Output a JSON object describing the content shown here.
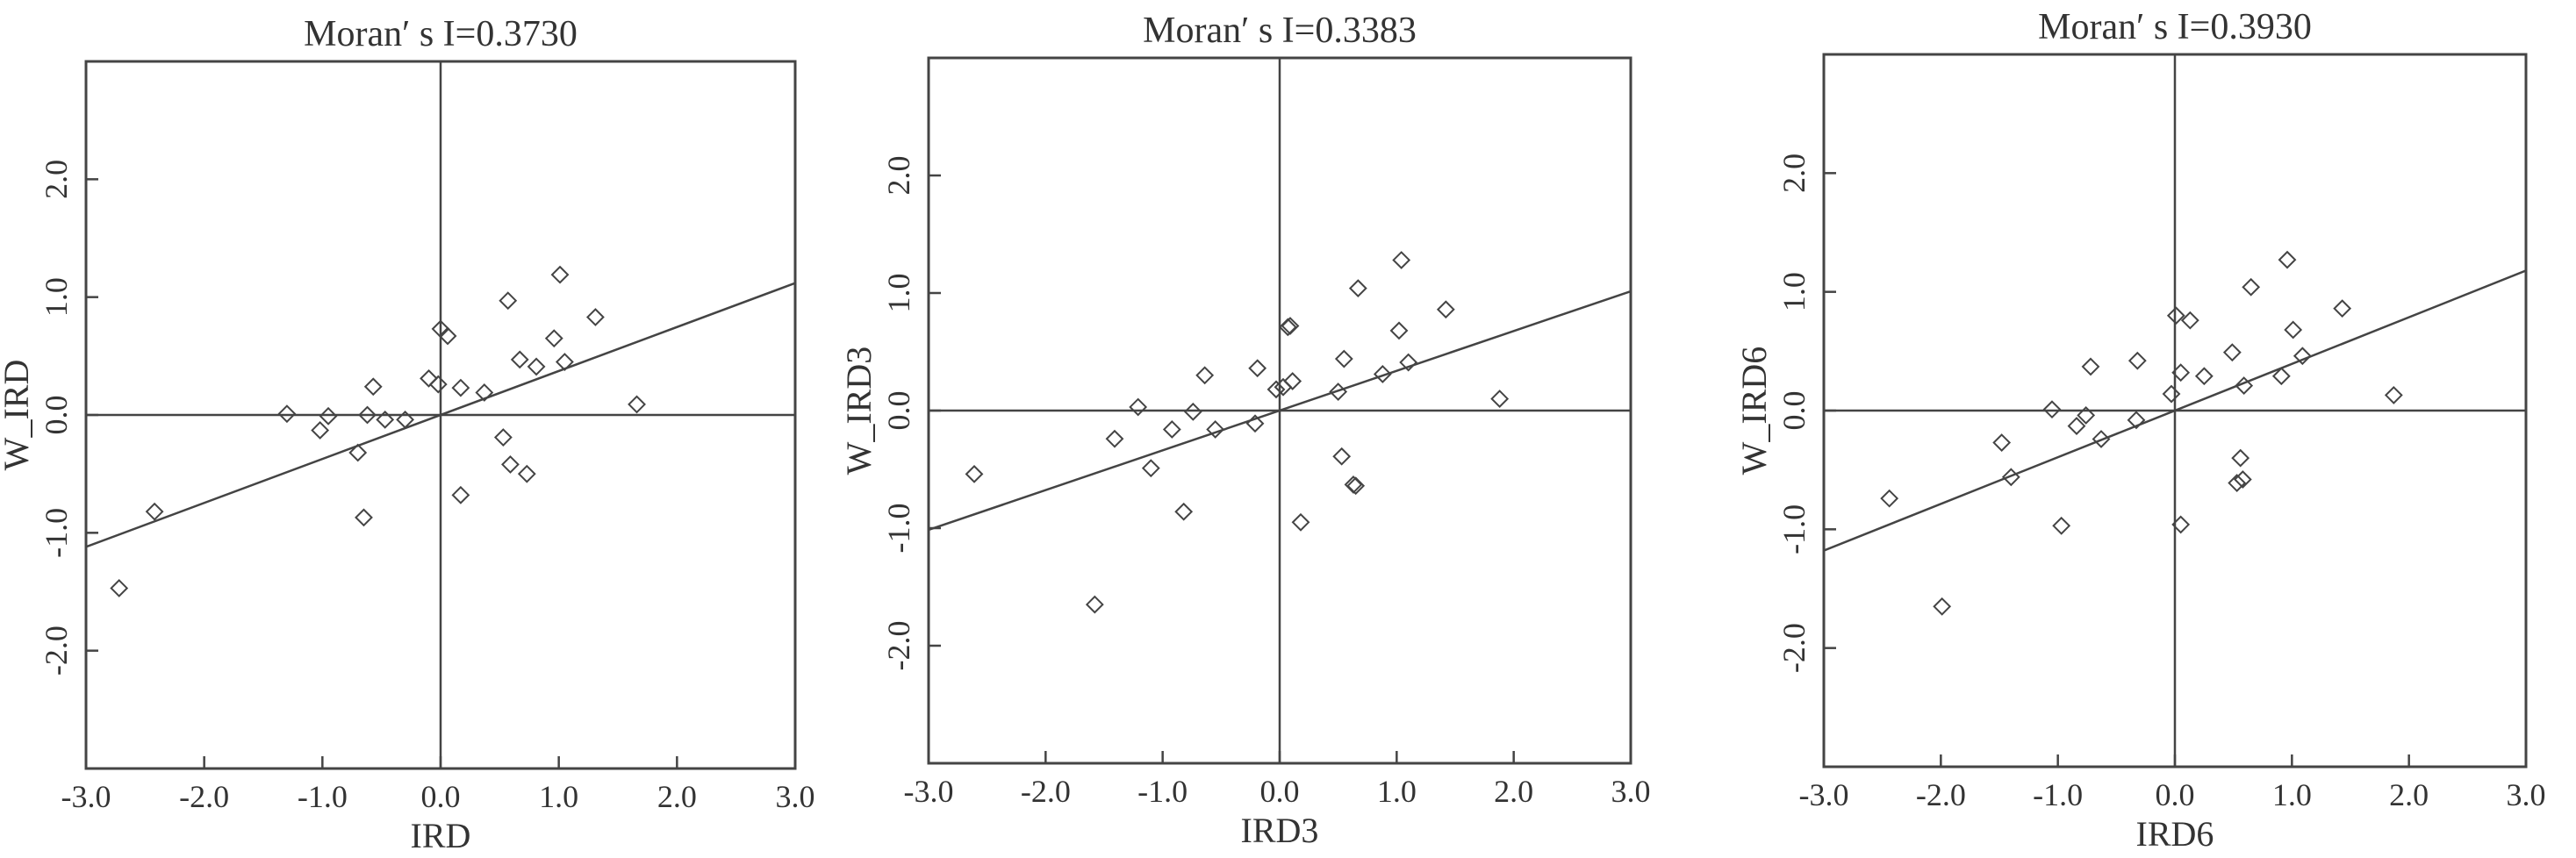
{
  "chart_data": [
    {
      "type": "scatter",
      "title": "Moran′ s I=0.3730",
      "xlabel": "IRD",
      "ylabel": "W_IRD",
      "xlim": [
        -3.0,
        3.0
      ],
      "ylim": [
        -3.0,
        3.0
      ],
      "xticks": [
        "-3.0",
        "-2.0",
        "-1.0",
        "0.0",
        "1.0",
        "2.0",
        "3.0"
      ],
      "yticks": [
        "-2.0",
        "-1.0",
        "0.0",
        "1.0",
        "2.0"
      ],
      "regression": {
        "slope": 0.373,
        "intercept": 0.0
      },
      "points": [
        [
          -2.72,
          -1.47
        ],
        [
          -2.42,
          -0.82
        ],
        [
          -1.3,
          0.01
        ],
        [
          -1.02,
          -0.13
        ],
        [
          -0.95,
          -0.01
        ],
        [
          -0.7,
          -0.32
        ],
        [
          -0.65,
          -0.87
        ],
        [
          -0.62,
          0.0
        ],
        [
          -0.57,
          0.24
        ],
        [
          -0.47,
          -0.04
        ],
        [
          -0.3,
          -0.04
        ],
        [
          -0.1,
          0.31
        ],
        [
          -0.02,
          0.26
        ],
        [
          0.0,
          0.73
        ],
        [
          0.06,
          0.67
        ],
        [
          0.17,
          -0.68
        ],
        [
          0.17,
          0.23
        ],
        [
          0.37,
          0.19
        ],
        [
          0.53,
          -0.19
        ],
        [
          0.57,
          0.97
        ],
        [
          0.59,
          -0.42
        ],
        [
          0.67,
          0.47
        ],
        [
          0.73,
          -0.5
        ],
        [
          0.81,
          0.41
        ],
        [
          0.96,
          0.65
        ],
        [
          1.01,
          1.19
        ],
        [
          1.05,
          0.45
        ],
        [
          1.31,
          0.83
        ],
        [
          1.66,
          0.09
        ]
      ]
    },
    {
      "type": "scatter",
      "title": "Moran′ s I=0.3383",
      "xlabel": "IRD3",
      "ylabel": "W_IRD3",
      "xlim": [
        -3.0,
        3.0
      ],
      "ylim": [
        -3.0,
        3.0
      ],
      "xticks": [
        "-3.0",
        "-2.0",
        "-1.0",
        "0.0",
        "1.0",
        "2.0",
        "3.0"
      ],
      "yticks": [
        "-2.0",
        "-1.0",
        "0.0",
        "1.0",
        "2.0"
      ],
      "regression": {
        "slope": 0.3383,
        "intercept": 0.0
      },
      "points": [
        [
          -2.61,
          -0.54
        ],
        [
          -1.58,
          -1.65
        ],
        [
          -1.41,
          -0.24
        ],
        [
          -1.21,
          0.03
        ],
        [
          -1.1,
          -0.49
        ],
        [
          -0.92,
          -0.16
        ],
        [
          -0.82,
          -0.86
        ],
        [
          -0.74,
          -0.01
        ],
        [
          -0.64,
          0.3
        ],
        [
          -0.55,
          -0.16
        ],
        [
          -0.21,
          -0.11
        ],
        [
          -0.19,
          0.36
        ],
        [
          -0.03,
          0.18
        ],
        [
          0.03,
          0.2
        ],
        [
          0.07,
          0.71
        ],
        [
          0.09,
          0.72
        ],
        [
          0.11,
          0.25
        ],
        [
          0.18,
          -0.95
        ],
        [
          0.5,
          0.16
        ],
        [
          0.53,
          -0.39
        ],
        [
          0.55,
          0.44
        ],
        [
          0.63,
          -0.63
        ],
        [
          0.65,
          -0.64
        ],
        [
          0.67,
          1.04
        ],
        [
          0.88,
          0.31
        ],
        [
          1.02,
          0.68
        ],
        [
          1.04,
          1.28
        ],
        [
          1.1,
          0.41
        ],
        [
          1.42,
          0.86
        ],
        [
          1.88,
          0.1
        ]
      ]
    },
    {
      "type": "scatter",
      "title": "Moran′ s I=0.3930",
      "xlabel": "IRD6",
      "ylabel": "W_IRD6",
      "xlim": [
        -3.0,
        3.0
      ],
      "ylim": [
        -3.0,
        3.0
      ],
      "xticks": [
        "-3.0",
        "-2.0",
        "-1.0",
        "0.0",
        "1.0",
        "2.0",
        "3.0"
      ],
      "yticks": [
        "-2.0",
        "-1.0",
        "0.0",
        "1.0",
        "2.0"
      ],
      "regression": {
        "slope": 0.393,
        "intercept": 0.0
      },
      "points": [
        [
          -2.44,
          -0.74
        ],
        [
          -1.99,
          -1.65
        ],
        [
          -1.48,
          -0.27
        ],
        [
          -1.4,
          -0.56
        ],
        [
          -1.05,
          0.01
        ],
        [
          -0.97,
          -0.97
        ],
        [
          -0.84,
          -0.13
        ],
        [
          -0.76,
          -0.04
        ],
        [
          -0.72,
          0.37
        ],
        [
          -0.63,
          -0.24
        ],
        [
          -0.33,
          -0.08
        ],
        [
          -0.32,
          0.42
        ],
        [
          -0.03,
          0.14
        ],
        [
          0.01,
          0.8
        ],
        [
          0.05,
          0.32
        ],
        [
          0.05,
          -0.96
        ],
        [
          0.13,
          0.76
        ],
        [
          0.25,
          0.29
        ],
        [
          0.49,
          0.49
        ],
        [
          0.53,
          -0.61
        ],
        [
          0.56,
          -0.4
        ],
        [
          0.58,
          -0.58
        ],
        [
          0.59,
          0.21
        ],
        [
          0.65,
          1.04
        ],
        [
          0.91,
          0.29
        ],
        [
          0.96,
          1.27
        ],
        [
          1.01,
          0.68
        ],
        [
          1.09,
          0.46
        ],
        [
          1.43,
          0.86
        ],
        [
          1.87,
          0.13
        ]
      ]
    }
  ]
}
